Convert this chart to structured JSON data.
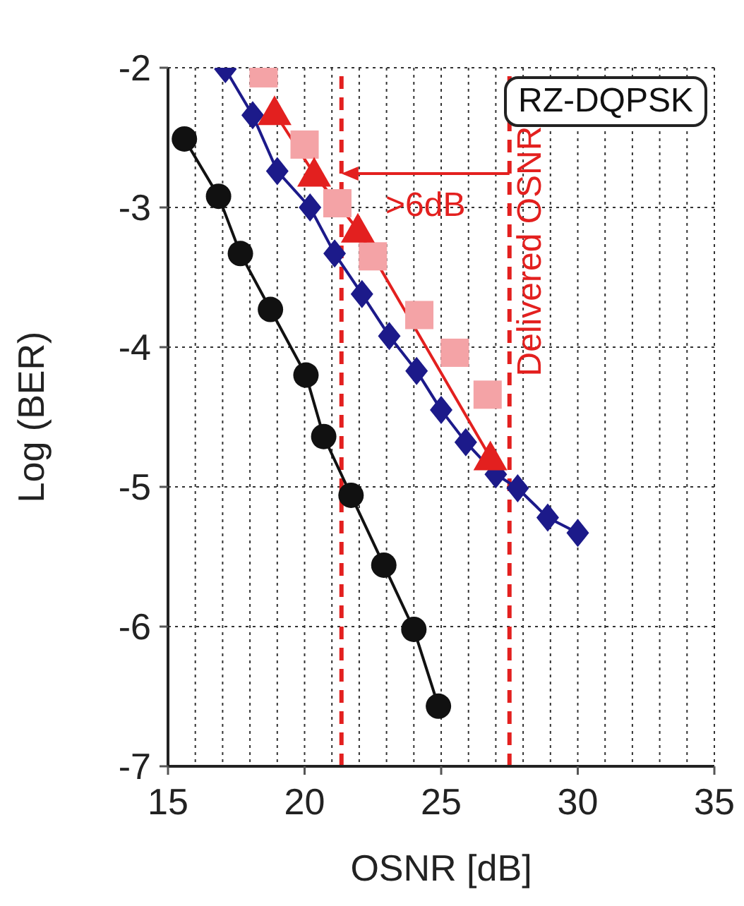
{
  "chart_data": {
    "type": "line",
    "xlabel": "OSNR [dB]",
    "ylabel": "Log (BER)",
    "xlim": [
      15,
      35
    ],
    "xticks": [
      15,
      {
        "value": 16,
        "label": null
      },
      {
        "value": 17,
        "label": null
      },
      {
        "value": 18,
        "label": null
      },
      {
        "value": 19,
        "label": null
      },
      20,
      {
        "value": 21,
        "label": null
      },
      {
        "value": 22,
        "label": null
      },
      {
        "value": 23,
        "label": null
      },
      {
        "value": 24,
        "label": null
      },
      25,
      {
        "value": 26,
        "label": null
      },
      {
        "value": 27,
        "label": null
      },
      {
        "value": 28,
        "label": null
      },
      {
        "value": 29,
        "label": null
      },
      30,
      {
        "value": 31,
        "label": null
      },
      {
        "value": 32,
        "label": null
      },
      {
        "value": 33,
        "label": null
      },
      {
        "value": 34,
        "label": null
      },
      35
    ],
    "ylim": [
      -7,
      -2
    ],
    "yticks": [
      -7,
      -6,
      -5,
      -4,
      -3,
      -2
    ],
    "grid": true,
    "series": [
      {
        "color": "#111111",
        "marker": "circle",
        "x": [
          15.6,
          16.85,
          17.65,
          18.75,
          20.05,
          20.7,
          21.7,
          22.9,
          24.0,
          24.9
        ],
        "values": [
          -2.51,
          -2.92,
          -3.33,
          -3.73,
          -4.2,
          -4.64,
          -5.06,
          -5.56,
          -6.02,
          -6.57
        ]
      },
      {
        "type": "scatter",
        "color": "#f4a3a6",
        "marker": "square",
        "x": [
          18.5,
          20.0,
          21.2,
          22.5,
          24.2,
          25.5,
          26.7
        ],
        "values": [
          -2.04,
          -2.55,
          -2.97,
          -3.35,
          -3.77,
          -4.04,
          -4.34
        ]
      },
      {
        "color": "#1c1a8a",
        "marker": "diamond",
        "x": [
          17.1,
          18.1,
          19.0,
          20.2,
          21.1,
          22.1,
          23.1,
          24.1,
          25.0,
          25.9,
          27.0,
          27.8,
          28.9,
          30.0
        ],
        "values": [
          -2.01,
          -2.34,
          -2.74,
          -3.0,
          -3.33,
          -3.62,
          -3.92,
          -4.17,
          -4.45,
          -4.68,
          -4.91,
          -5.01,
          -5.22,
          -5.33
        ]
      },
      {
        "color": "#e3201f",
        "marker": "triangle",
        "x": [
          18.9,
          20.35,
          21.95,
          26.8
        ],
        "values": [
          -2.32,
          -2.76,
          -3.16,
          -4.79
        ]
      }
    ],
    "ref_lines": [
      {
        "axis": "x",
        "value": 27.5,
        "label": "Delivered OSNR",
        "color": "#e3201f",
        "line_style": "dashed"
      },
      {
        "axis": "x",
        "value": 21.35,
        "label": null,
        "color": "#e3201f",
        "line_style": "dashed"
      }
    ],
    "annotations": [
      "RZ-DQPSK",
      ">6dB"
    ]
  }
}
